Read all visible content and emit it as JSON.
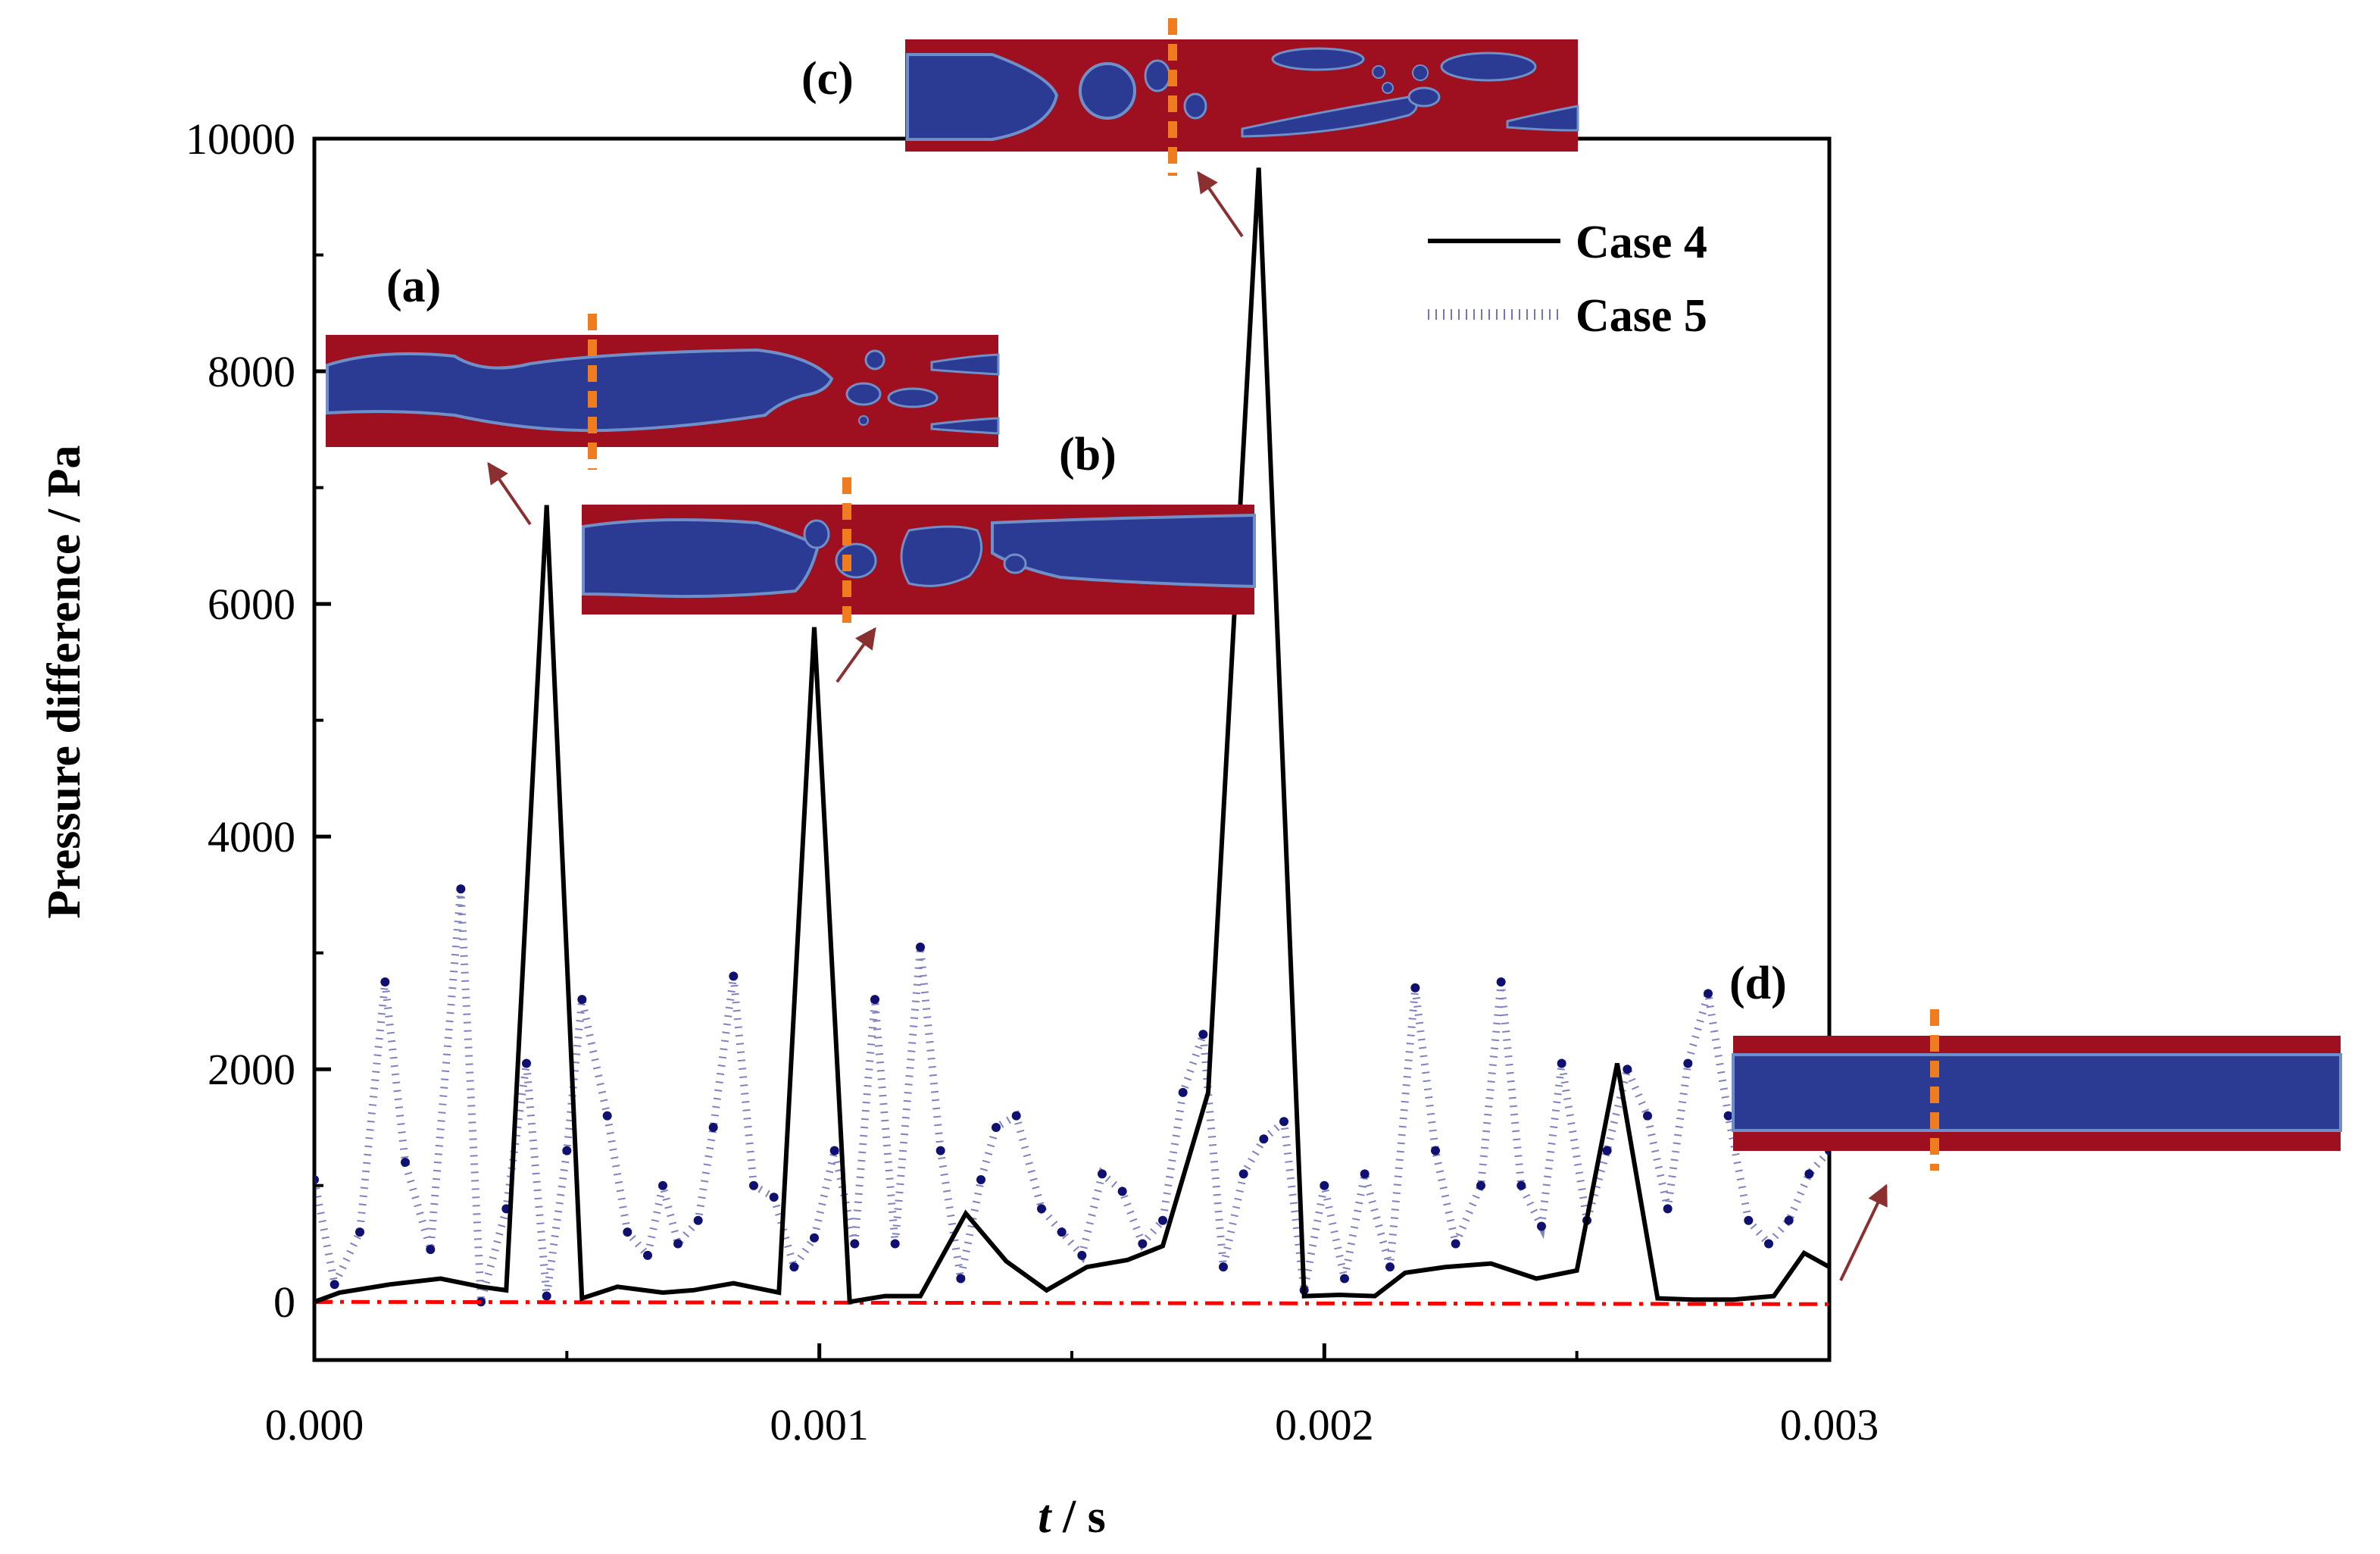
{
  "chart_data": {
    "type": "line",
    "title": "",
    "xlabel_italic": "t",
    "xlabel_unit": " / s",
    "ylabel": "Pressure difference / Pa",
    "xlim": [
      0,
      0.003
    ],
    "ylim": [
      -500,
      10000
    ],
    "x_ticks": [
      {
        "value": 0.0,
        "label": "0.000"
      },
      {
        "value": 0.001,
        "label": "0.001"
      },
      {
        "value": 0.002,
        "label": "0.002"
      },
      {
        "value": 0.003,
        "label": "0.003"
      }
    ],
    "y_ticks": [
      {
        "value": 0,
        "label": "0"
      },
      {
        "value": 2000,
        "label": "2000"
      },
      {
        "value": 4000,
        "label": "4000"
      },
      {
        "value": 6000,
        "label": "6000"
      },
      {
        "value": 8000,
        "label": "8000"
      },
      {
        "value": 10000,
        "label": "10000"
      }
    ],
    "series": [
      {
        "name": "Case 4",
        "style": "solid",
        "color": "#000000",
        "x": [
          0.0,
          5e-05,
          0.00015,
          0.00025,
          0.00033,
          0.00038,
          0.00046,
          0.00053,
          0.0006,
          0.00069,
          0.00075,
          0.00083,
          0.00092,
          0.00099,
          0.00106,
          0.00113,
          0.0012,
          0.00129,
          0.00137,
          0.00145,
          0.00153,
          0.00161,
          0.00168,
          0.00177,
          0.00187,
          0.00196,
          0.00203,
          0.0021,
          0.00216,
          0.00224,
          0.00233,
          0.00242,
          0.0025,
          0.00258,
          0.00266,
          0.00273,
          0.00281,
          0.00289,
          0.00295,
          0.003
        ],
        "values": [
          0,
          80,
          150,
          200,
          130,
          100,
          6850,
          30,
          130,
          80,
          100,
          160,
          80,
          5800,
          0,
          50,
          50,
          760,
          350,
          100,
          300,
          360,
          480,
          1800,
          9750,
          50,
          60,
          50,
          250,
          300,
          330,
          200,
          270,
          2050,
          30,
          20,
          20,
          50,
          420,
          300
        ]
      },
      {
        "name": "Case 5",
        "style": "dotted",
        "color": "#1a1a8c",
        "x": [
          0.0,
          4e-05,
          9e-05,
          0.00014,
          0.00018,
          0.00023,
          0.00029,
          0.00033,
          0.00038,
          0.00042,
          0.00046,
          0.0005,
          0.00053,
          0.00058,
          0.00062,
          0.00066,
          0.00069,
          0.00072,
          0.00076,
          0.00079,
          0.00083,
          0.00087,
          0.00091,
          0.00095,
          0.00099,
          0.00103,
          0.00107,
          0.00111,
          0.00115,
          0.0012,
          0.00124,
          0.00128,
          0.00132,
          0.00135,
          0.00139,
          0.00144,
          0.00148,
          0.00152,
          0.00156,
          0.0016,
          0.00164,
          0.00168,
          0.00172,
          0.00176,
          0.0018,
          0.00184,
          0.00188,
          0.00192,
          0.00196,
          0.002,
          0.00204,
          0.00208,
          0.00213,
          0.00218,
          0.00222,
          0.00226,
          0.00231,
          0.00235,
          0.00239,
          0.00243,
          0.00247,
          0.00252,
          0.00256,
          0.0026,
          0.00264,
          0.00268,
          0.00272,
          0.00276,
          0.0028,
          0.00284,
          0.00288,
          0.00292,
          0.00296,
          0.003
        ],
        "values": [
          1050,
          150,
          600,
          2750,
          1200,
          450,
          3550,
          0,
          800,
          2050,
          50,
          1300,
          2600,
          1600,
          600,
          400,
          1000,
          500,
          700,
          1500,
          2800,
          1000,
          900,
          300,
          550,
          1300,
          500,
          2600,
          500,
          3050,
          1300,
          200,
          1050,
          1500,
          1600,
          800,
          600,
          400,
          1100,
          950,
          500,
          700,
          1800,
          2300,
          300,
          1100,
          1400,
          1550,
          100,
          1000,
          200,
          1100,
          300,
          2700,
          1300,
          500,
          1000,
          2750,
          1000,
          650,
          2050,
          700,
          1300,
          2000,
          1600,
          800,
          2050,
          2650,
          1600,
          700,
          500,
          700,
          1100,
          1300
        ]
      },
      {
        "name": "baseline",
        "style": "dash-dot",
        "color": "#ff0000",
        "x": [
          0.0,
          0.003
        ],
        "values": [
          0,
          -20
        ]
      }
    ],
    "legend": {
      "placement": "top-right",
      "entries": [
        "Case 4",
        "Case 5"
      ]
    },
    "annotations": [
      {
        "label": "(a)",
        "points_to": {
          "x": 0.00043,
          "y": 6800
        }
      },
      {
        "label": "(b)",
        "points_to": {
          "x": 0.00103,
          "y": 5600
        }
      },
      {
        "label": "(c)",
        "points_to": {
          "x": 0.00183,
          "y": 9600
        }
      },
      {
        "label": "(d)",
        "points_to": {
          "x": 0.003,
          "y": 200
        }
      }
    ]
  },
  "colors": {
    "case4": "#000000",
    "case5": "#1a1a8c",
    "baseline": "#ff0000",
    "inset_liquid": "#9e0f1f",
    "inset_gas": "#2b3a93",
    "inset_interface": "#6f8fc9",
    "marker": "#f07c20",
    "arrow": "#8b3030"
  }
}
